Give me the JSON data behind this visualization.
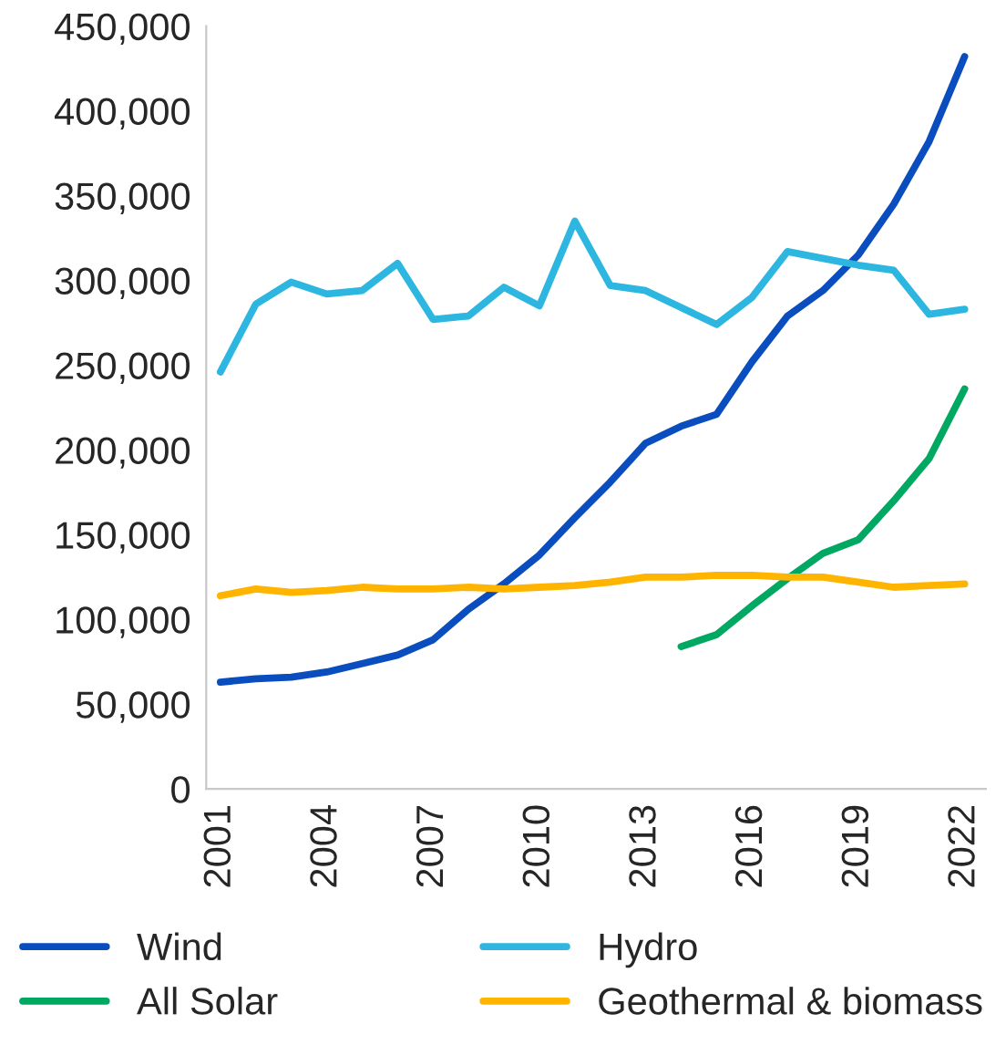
{
  "chart_data": {
    "type": "line",
    "x": [
      2001,
      2002,
      2003,
      2004,
      2005,
      2006,
      2007,
      2008,
      2009,
      2010,
      2011,
      2012,
      2013,
      2014,
      2015,
      2016,
      2017,
      2018,
      2019,
      2020,
      2021,
      2022
    ],
    "series": [
      {
        "name": "Wind",
        "color": "#0a4dbf",
        "values": [
          63000,
          65000,
          66000,
          69000,
          74000,
          79000,
          88000,
          106000,
          121000,
          138000,
          160000,
          181000,
          204000,
          214000,
          221000,
          252000,
          279000,
          294000,
          315000,
          345000,
          382000,
          432000
        ]
      },
      {
        "name": "Hydro",
        "color": "#2db7e0",
        "values": [
          246000,
          286000,
          299000,
          292000,
          294000,
          310000,
          277000,
          279000,
          296000,
          285000,
          335000,
          297000,
          294000,
          284000,
          274000,
          290000,
          317000,
          313000,
          309000,
          306000,
          280000,
          283000
        ]
      },
      {
        "name": "All Solar",
        "color": "#00a862",
        "values": [
          null,
          null,
          null,
          null,
          null,
          null,
          null,
          null,
          null,
          null,
          null,
          null,
          null,
          84000,
          91000,
          108000,
          124000,
          139000,
          147000,
          170000,
          195000,
          236000
        ]
      },
      {
        "name": "Geothermal & biomass",
        "color": "#ffb400",
        "values": [
          114000,
          118000,
          116000,
          117000,
          119000,
          118000,
          118000,
          119000,
          118000,
          119000,
          120000,
          122000,
          125000,
          125000,
          126000,
          126000,
          125000,
          125000,
          122000,
          119000,
          120000,
          121000
        ]
      }
    ],
    "xlim": [
      2000.6,
      2022.6
    ],
    "xticks": [
      2001,
      2004,
      2007,
      2010,
      2013,
      2016,
      2019,
      2022
    ],
    "ylim": [
      0,
      450000
    ],
    "yticks": [
      {
        "value": 0,
        "label": "0"
      },
      {
        "value": 50000,
        "label": "50,000"
      },
      {
        "value": 100000,
        "label": "100,000"
      },
      {
        "value": 150000,
        "label": "150,000"
      },
      {
        "value": 200000,
        "label": "200,000"
      },
      {
        "value": 250000,
        "label": "250,000"
      },
      {
        "value": 300000,
        "label": "300,000"
      },
      {
        "value": 350000,
        "label": "350,000"
      },
      {
        "value": 400000,
        "label": "400,000"
      },
      {
        "value": 450000,
        "label": "450,000"
      }
    ],
    "grid": false,
    "legend": "bottom",
    "marker": "none",
    "line_style": "solid"
  }
}
